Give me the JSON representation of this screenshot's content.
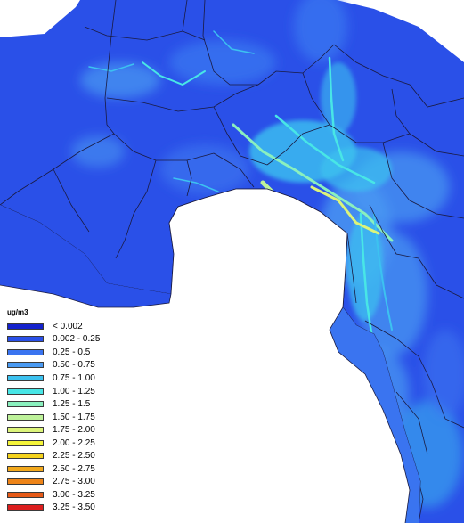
{
  "legend": {
    "unit": "ug/m3",
    "items": [
      {
        "label": "< 0.002",
        "color": "#1422cc"
      },
      {
        "label": "0.002 - 0.25",
        "color": "#2a50e8"
      },
      {
        "label": "0.25 - 0.5",
        "color": "#3a74f0"
      },
      {
        "label": "0.50 - 0.75",
        "color": "#4a9af2"
      },
      {
        "label": "0.75 - 1.00",
        "color": "#3cc2f0"
      },
      {
        "label": "1.00 - 1.25",
        "color": "#48e6e6"
      },
      {
        "label": "1.25 - 1.5",
        "color": "#8af0be"
      },
      {
        "label": "1.50 - 1.75",
        "color": "#bef29a"
      },
      {
        "label": "1.75 - 2.00",
        "color": "#dcf47a"
      },
      {
        "label": "2.00 - 2.25",
        "color": "#f4f43a"
      },
      {
        "label": "2.25 - 2.50",
        "color": "#f4d21c"
      },
      {
        "label": "2.50 - 2.75",
        "color": "#f2a81c"
      },
      {
        "label": "2.75 - 3.00",
        "color": "#ee8418"
      },
      {
        "label": "3.00 - 3.25",
        "color": "#e65a18"
      },
      {
        "label": "3.25 - 3.50",
        "color": "#dc1e1e"
      }
    ]
  },
  "map": {
    "base_color": "#2a50e8",
    "sea_color": "#ffffff"
  }
}
